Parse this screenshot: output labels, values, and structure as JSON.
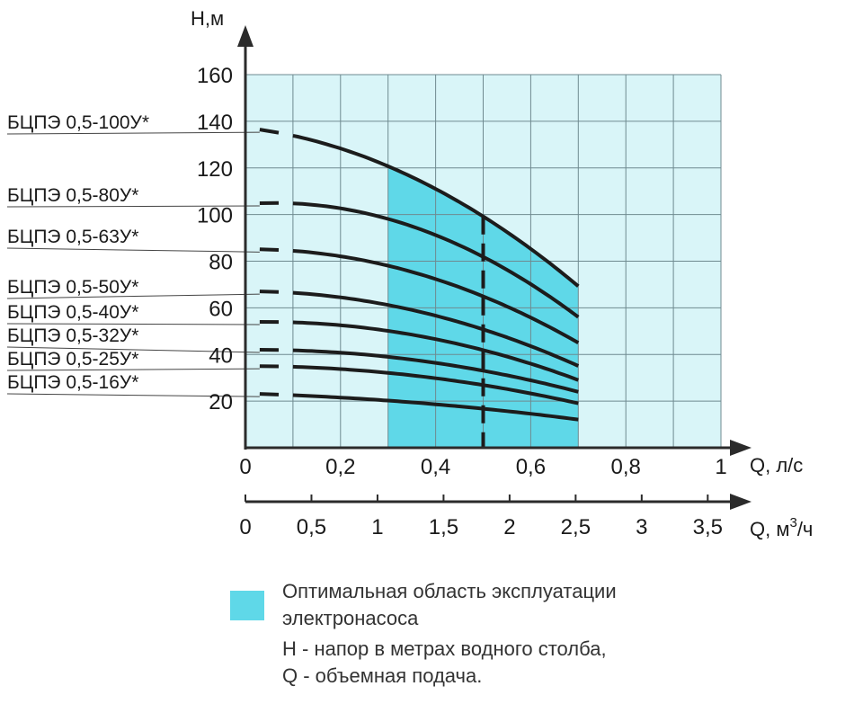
{
  "chart_data": {
    "type": "line",
    "ylabel": "H,м",
    "xlabel": "Q, л/с",
    "x2label_prefix": "Q, м",
    "x2label_sup": "3",
    "x2label_suffix": "/ч",
    "ylim": [
      0,
      160
    ],
    "xlim": [
      0,
      1
    ],
    "x2lim": [
      0,
      3.6
    ],
    "y_ticks": [
      "20",
      "40",
      "60",
      "80",
      "100",
      "120",
      "140",
      "160"
    ],
    "x_ticks": [
      "0",
      "0,2",
      "0,4",
      "0,6",
      "0,8",
      "1"
    ],
    "x2_ticks": [
      "0",
      "0,5",
      "1",
      "1,5",
      "2",
      "2,5",
      "3",
      "3,5"
    ],
    "grid": true,
    "optimal_region": {
      "x_from": 0.3,
      "x_to": 0.7,
      "color": "#5fd8e8"
    },
    "plot_background": "#d9f5f8",
    "nominal_flow_x": 0.5,
    "series": [
      {
        "name": "БЦПЭ 0,5-100У*",
        "x": [
          0.05,
          0.3,
          0.5,
          0.7
        ],
        "y": [
          136,
          120,
          100,
          69
        ]
      },
      {
        "name": "БЦПЭ 0,5-80У*",
        "x": [
          0.05,
          0.3,
          0.5,
          0.7
        ],
        "y": [
          105,
          98,
          82,
          56
        ]
      },
      {
        "name": "БЦПЭ 0,5-63У*",
        "x": [
          0.05,
          0.3,
          0.5,
          0.7
        ],
        "y": [
          85,
          78,
          65,
          45
        ]
      },
      {
        "name": "БЦПЭ 0,5-50У*",
        "x": [
          0.05,
          0.3,
          0.5,
          0.7
        ],
        "y": [
          67,
          61,
          51,
          35
        ]
      },
      {
        "name": "БЦПЭ 0,5-40У*",
        "x": [
          0.05,
          0.3,
          0.5,
          0.7
        ],
        "y": [
          54,
          50,
          42,
          29
        ]
      },
      {
        "name": "БЦПЭ 0,5-32У*",
        "x": [
          0.05,
          0.3,
          0.5,
          0.7
        ],
        "y": [
          42,
          39,
          33,
          24
        ]
      },
      {
        "name": "БЦПЭ 0,5-25У*",
        "x": [
          0.05,
          0.3,
          0.5,
          0.7
        ],
        "y": [
          35,
          32,
          27,
          19
        ]
      },
      {
        "name": "БЦПЭ 0,5-16У*",
        "x": [
          0.05,
          0.3,
          0.5,
          0.7
        ],
        "y": [
          23,
          20,
          17,
          12
        ]
      }
    ]
  },
  "legend": {
    "swatch_color": "#5fd8e8",
    "region_line1": "Оптимальная область эксплуатации",
    "region_line2": "электронасоса",
    "note_h": "Н - напор в метрах водного столба,",
    "note_q": "Q - объемная подача."
  }
}
